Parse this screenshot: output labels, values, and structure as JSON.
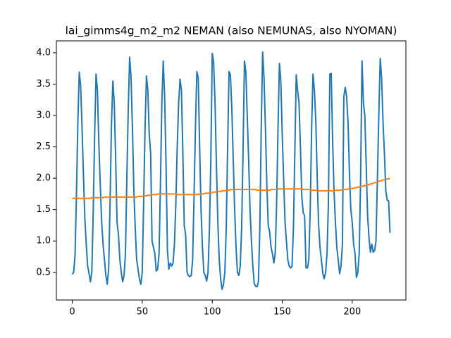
{
  "chart_data": {
    "type": "line",
    "title": "lai_gimms4g_m2_m2 NEMAN (also NEMUNAS, also NYOMAN)",
    "x": [
      0,
      1,
      2,
      3,
      4,
      5,
      6,
      7,
      8,
      9,
      10,
      11,
      12,
      13,
      14,
      15,
      16,
      17,
      18,
      19,
      20,
      21,
      22,
      23,
      24,
      25,
      26,
      27,
      28,
      29,
      30,
      31,
      32,
      33,
      34,
      35,
      36,
      37,
      38,
      39,
      40,
      41,
      42,
      43,
      44,
      45,
      46,
      47,
      48,
      49,
      50,
      51,
      52,
      53,
      54,
      55,
      56,
      57,
      58,
      59,
      60,
      61,
      62,
      63,
      64,
      65,
      66,
      67,
      68,
      69,
      70,
      71,
      72,
      73,
      74,
      75,
      76,
      77,
      78,
      79,
      80,
      81,
      82,
      83,
      84,
      85,
      86,
      87,
      88,
      89,
      90,
      91,
      92,
      93,
      94,
      95,
      96,
      97,
      98,
      99,
      100,
      101,
      102,
      103,
      104,
      105,
      106,
      107,
      108,
      109,
      110,
      111,
      112,
      113,
      114,
      115,
      116,
      117,
      118,
      119,
      120,
      121,
      122,
      123,
      124,
      125,
      126,
      127,
      128,
      129,
      130,
      131,
      132,
      133,
      134,
      135,
      136,
      137,
      138,
      139,
      140,
      141,
      142,
      143,
      144,
      145,
      146,
      147,
      148,
      149,
      150,
      151,
      152,
      153,
      154,
      155,
      156,
      157,
      158,
      159,
      160,
      161,
      162,
      163,
      164,
      165,
      166,
      167,
      168,
      169,
      170,
      171,
      172,
      173,
      174,
      175,
      176,
      177,
      178,
      179,
      180,
      181,
      182,
      183,
      184,
      185,
      186,
      187,
      188,
      189,
      190,
      191,
      192,
      193,
      194,
      195,
      196,
      197,
      198,
      199,
      200,
      201,
      202,
      203,
      204,
      205,
      206,
      207,
      208,
      209,
      210,
      211,
      212,
      213,
      214,
      215,
      216,
      217,
      218,
      219,
      220,
      221,
      222,
      223,
      224,
      225,
      226,
      227
    ],
    "series": [
      {
        "color": "#1f77b4",
        "values": [
          0.47,
          0.5,
          0.78,
          1.75,
          2.9,
          3.69,
          3.48,
          2.8,
          2.05,
          1.35,
          0.95,
          0.6,
          0.48,
          0.35,
          0.52,
          1.5,
          2.7,
          3.66,
          3.4,
          2.55,
          1.9,
          1.3,
          0.95,
          0.7,
          0.45,
          0.31,
          0.55,
          1.6,
          2.85,
          3.55,
          3.2,
          2.3,
          1.3,
          1.1,
          0.7,
          0.5,
          0.35,
          0.45,
          0.8,
          2.0,
          3.1,
          3.93,
          3.6,
          2.8,
          1.8,
          1.2,
          0.7,
          0.55,
          0.4,
          0.31,
          0.5,
          1.6,
          2.8,
          3.63,
          3.4,
          2.7,
          2.4,
          1.0,
          0.9,
          0.8,
          0.52,
          0.55,
          0.8,
          1.9,
          3.2,
          3.87,
          3.3,
          2.2,
          0.85,
          0.55,
          0.65,
          0.6,
          0.65,
          0.95,
          1.6,
          2.5,
          3.2,
          3.58,
          3.4,
          2.4,
          1.25,
          1.1,
          0.5,
          0.45,
          0.43,
          0.45,
          0.7,
          1.7,
          2.8,
          3.7,
          3.6,
          2.5,
          1.5,
          0.9,
          0.5,
          0.45,
          0.36,
          0.5,
          1.2,
          2.3,
          3.99,
          3.85,
          3.2,
          2.2,
          1.3,
          0.7,
          0.4,
          0.23,
          0.3,
          0.5,
          1.2,
          2.5,
          3.7,
          3.65,
          3.1,
          2.3,
          1.5,
          0.9,
          0.5,
          0.45,
          0.6,
          1.2,
          2.4,
          3.87,
          3.7,
          3.0,
          2.3,
          1.5,
          1.0,
          0.6,
          0.32,
          0.28,
          0.27,
          0.35,
          1.2,
          2.8,
          4.01,
          3.6,
          2.8,
          1.9,
          1.25,
          1.15,
          0.9,
          0.8,
          0.65,
          0.8,
          1.6,
          2.8,
          3.83,
          3.55,
          2.7,
          2.0,
          1.3,
          1.0,
          0.7,
          0.6,
          0.57,
          0.6,
          1.2,
          2.4,
          3.65,
          3.4,
          3.2,
          2.5,
          1.7,
          1.45,
          1.4,
          0.57,
          0.57,
          0.7,
          1.5,
          2.8,
          3.66,
          3.4,
          2.9,
          2.0,
          1.25,
          0.9,
          0.7,
          0.48,
          0.4,
          0.5,
          0.8,
          1.6,
          3.66,
          3.67,
          2.6,
          1.8,
          1.3,
          0.9,
          0.7,
          0.48,
          0.6,
          0.95,
          3.3,
          3.45,
          3.3,
          2.9,
          2.1,
          1.5,
          1.3,
          0.95,
          0.8,
          0.42,
          0.5,
          0.8,
          2.0,
          3.87,
          3.2,
          3.0,
          2.2,
          1.4,
          1.05,
          0.82,
          0.95,
          0.82,
          0.85,
          1.0,
          2.0,
          3.0,
          3.91,
          3.6,
          2.9,
          2.4,
          1.8,
          1.65,
          1.64,
          1.13
        ]
      },
      {
        "color": "#ff7f0e",
        "values": [
          1.68,
          1.68,
          1.68,
          1.68,
          1.68,
          1.68,
          1.68,
          1.68,
          1.68,
          1.68,
          1.68,
          1.68,
          1.68,
          1.68,
          1.69,
          1.69,
          1.69,
          1.69,
          1.69,
          1.69,
          1.69,
          1.69,
          1.69,
          1.7,
          1.7,
          1.7,
          1.7,
          1.7,
          1.7,
          1.7,
          1.7,
          1.7,
          1.7,
          1.7,
          1.7,
          1.7,
          1.7,
          1.7,
          1.7,
          1.7,
          1.7,
          1.7,
          1.7,
          1.7,
          1.7,
          1.7,
          1.7,
          1.71,
          1.71,
          1.71,
          1.71,
          1.72,
          1.72,
          1.72,
          1.73,
          1.73,
          1.73,
          1.74,
          1.74,
          1.74,
          1.74,
          1.75,
          1.75,
          1.75,
          1.75,
          1.75,
          1.75,
          1.75,
          1.75,
          1.75,
          1.75,
          1.75,
          1.75,
          1.75,
          1.75,
          1.74,
          1.74,
          1.74,
          1.74,
          1.74,
          1.74,
          1.74,
          1.74,
          1.74,
          1.74,
          1.74,
          1.74,
          1.74,
          1.74,
          1.74,
          1.74,
          1.75,
          1.75,
          1.75,
          1.75,
          1.76,
          1.76,
          1.76,
          1.77,
          1.77,
          1.77,
          1.78,
          1.78,
          1.78,
          1.79,
          1.79,
          1.79,
          1.8,
          1.8,
          1.8,
          1.81,
          1.81,
          1.81,
          1.82,
          1.82,
          1.82,
          1.82,
          1.82,
          1.82,
          1.82,
          1.82,
          1.82,
          1.82,
          1.82,
          1.82,
          1.82,
          1.82,
          1.82,
          1.82,
          1.82,
          1.82,
          1.82,
          1.81,
          1.81,
          1.81,
          1.81,
          1.81,
          1.81,
          1.81,
          1.81,
          1.81,
          1.81,
          1.82,
          1.82,
          1.82,
          1.82,
          1.82,
          1.83,
          1.83,
          1.83,
          1.83,
          1.83,
          1.83,
          1.83,
          1.83,
          1.83,
          1.83,
          1.83,
          1.83,
          1.83,
          1.83,
          1.83,
          1.83,
          1.83,
          1.83,
          1.82,
          1.82,
          1.82,
          1.82,
          1.82,
          1.82,
          1.81,
          1.81,
          1.81,
          1.81,
          1.8,
          1.8,
          1.8,
          1.8,
          1.8,
          1.8,
          1.8,
          1.8,
          1.8,
          1.8,
          1.8,
          1.8,
          1.8,
          1.81,
          1.81,
          1.81,
          1.81,
          1.81,
          1.82,
          1.82,
          1.82,
          1.82,
          1.83,
          1.83,
          1.83,
          1.84,
          1.84,
          1.85,
          1.85,
          1.86,
          1.86,
          1.87,
          1.87,
          1.88,
          1.88,
          1.89,
          1.89,
          1.9,
          1.91,
          1.91,
          1.92,
          1.93,
          1.93,
          1.94,
          1.95,
          1.96,
          1.96,
          1.97,
          1.98,
          1.98,
          1.99,
          1.99,
          2.0
        ]
      }
    ],
    "xlim": [
      -11.35,
      238.35
    ],
    "xticks": [
      0,
      50,
      100,
      150,
      200
    ],
    "ylim": [
      0.06,
      4.19
    ],
    "yticks": [
      0.5,
      {
        "value": 1,
        "label": "1.0"
      },
      1.5,
      {
        "value": 2,
        "label": "2.0"
      },
      2.5,
      {
        "value": 3,
        "label": "3.0"
      },
      3.5,
      {
        "value": 4,
        "label": "4.0"
      }
    ],
    "grid": false
  }
}
